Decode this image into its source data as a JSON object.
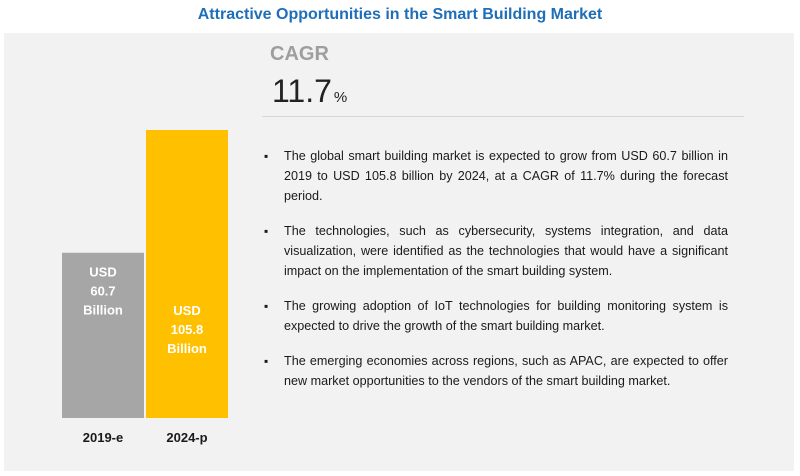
{
  "title": "Attractive Opportunities in the Smart Building Market",
  "cagr": {
    "label": "CAGR",
    "value": "11.7",
    "unit": "%"
  },
  "bullets": [
    "The global smart building market is expected to grow from USD 60.7 billion in 2019 to USD 105.8 billion by 2024, at a CAGR of 11.7% during the forecast period.",
    "The technologies, such as cybersecurity, systems integration, and data visualization, were identified as the technologies that would have a significant impact on the implementation of the smart building system.",
    "The growing adoption of IoT technologies for building monitoring system is expected to drive the growth of the smart building market.",
    "The emerging economies across regions, such as APAC, are expected to offer new market opportunities to the vendors of the smart building market."
  ],
  "chart_data": {
    "type": "bar",
    "categories": [
      "2019-e",
      "2024-p"
    ],
    "values": [
      60.7,
      105.8
    ],
    "bar_labels": [
      [
        "USD",
        "60.7",
        "Billion"
      ],
      [
        "USD",
        "105.8",
        "Billion"
      ]
    ],
    "colors": [
      "#a6a6a6",
      "#ffc000"
    ],
    "ylim": [
      0,
      110
    ],
    "title": "",
    "xlabel": "",
    "ylabel": "",
    "grid": false
  }
}
